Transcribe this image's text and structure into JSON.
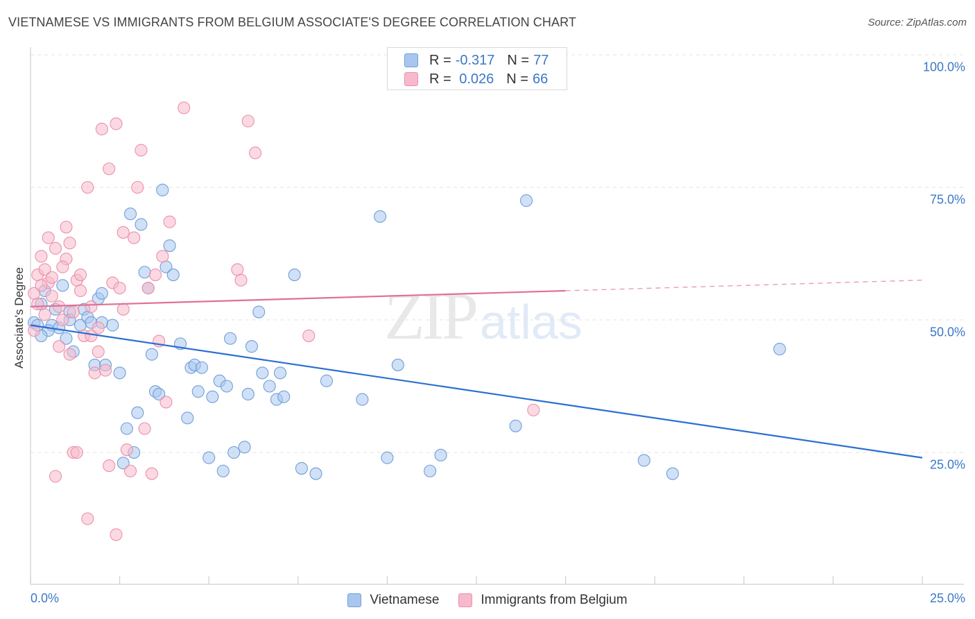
{
  "title": "VIETNAMESE VS IMMIGRANTS FROM BELGIUM ASSOCIATE'S DEGREE CORRELATION CHART",
  "source": "Source: ZipAtlas.com",
  "watermark": {
    "zip": "ZIP",
    "atlas": "atlas"
  },
  "legend_top": [
    {
      "r_label": "R =",
      "r_value": "-0.317",
      "n_label": "N =",
      "n_value": "77"
    },
    {
      "r_label": "R =",
      "r_value": " 0.026",
      "n_label": "N =",
      "n_value": "66"
    }
  ],
  "colors": {
    "vietnamese_fill": "#a9c6ee",
    "vietnamese_stroke": "#6f9fd8",
    "vietnamese_line": "#2a6fd0",
    "belgium_fill": "#f7b9cb",
    "belgium_stroke": "#ec8fab",
    "belgium_line": "#e07096",
    "tick_text": "#3b78c6",
    "grid": "#e3e3e3"
  },
  "chart_data": {
    "type": "scatter",
    "title": "VIETNAMESE VS IMMIGRANTS FROM BELGIUM ASSOCIATE'S DEGREE CORRELATION CHART",
    "xlabel": "",
    "ylabel": "Associate's Degree",
    "xlim": [
      0,
      25
    ],
    "ylim": [
      0,
      105
    ],
    "x_tick_labels": [
      "0.0%",
      "25.0%"
    ],
    "y_tick_labels": [
      "25.0%",
      "50.0%",
      "75.0%",
      "100.0%"
    ],
    "y_ticks": [
      25,
      50,
      75,
      100
    ],
    "grid": true,
    "legend": "top-center and bottom",
    "series": [
      {
        "name": "Vietnamese",
        "r": -0.317,
        "n": 77,
        "trend": {
          "x": [
            0,
            25
          ],
          "y": [
            49,
            24
          ],
          "dashed_from": null
        },
        "points": [
          [
            0.1,
            49.5
          ],
          [
            0.3,
            53
          ],
          [
            0.4,
            55.5
          ],
          [
            0.6,
            49
          ],
          [
            0.7,
            52
          ],
          [
            0.8,
            48.5
          ],
          [
            0.9,
            56.5
          ],
          [
            1.0,
            46.5
          ],
          [
            1.1,
            51.5
          ],
          [
            1.2,
            44
          ],
          [
            1.4,
            49
          ],
          [
            1.5,
            52
          ],
          [
            1.6,
            50.5
          ],
          [
            1.7,
            49.5
          ],
          [
            1.8,
            41.5
          ],
          [
            1.9,
            54
          ],
          [
            2.0,
            49.5
          ],
          [
            2.1,
            41.5
          ],
          [
            2.3,
            49
          ],
          [
            2.5,
            40
          ],
          [
            2.6,
            23
          ],
          [
            2.7,
            29.5
          ],
          [
            2.8,
            70
          ],
          [
            2.9,
            25
          ],
          [
            3.0,
            32.5
          ],
          [
            3.1,
            68
          ],
          [
            3.2,
            59
          ],
          [
            3.3,
            56
          ],
          [
            3.4,
            43.5
          ],
          [
            3.5,
            36.5
          ],
          [
            3.6,
            36
          ],
          [
            3.7,
            74.5
          ],
          [
            3.8,
            60
          ],
          [
            3.9,
            64
          ],
          [
            4.0,
            58.5
          ],
          [
            4.2,
            45.5
          ],
          [
            4.4,
            31.5
          ],
          [
            4.5,
            41
          ],
          [
            4.6,
            41.5
          ],
          [
            4.7,
            36.5
          ],
          [
            4.8,
            41
          ],
          [
            5.0,
            24
          ],
          [
            5.1,
            35.5
          ],
          [
            5.3,
            38.5
          ],
          [
            5.4,
            21.5
          ],
          [
            5.5,
            37.5
          ],
          [
            5.6,
            46.5
          ],
          [
            5.7,
            25
          ],
          [
            6.0,
            26
          ],
          [
            6.1,
            36
          ],
          [
            6.2,
            45
          ],
          [
            6.4,
            51.5
          ],
          [
            6.5,
            40
          ],
          [
            6.7,
            37.5
          ],
          [
            6.9,
            35
          ],
          [
            7.0,
            40
          ],
          [
            7.1,
            35.5
          ],
          [
            7.4,
            58.5
          ],
          [
            7.6,
            22
          ],
          [
            8.0,
            21
          ],
          [
            8.3,
            38.5
          ],
          [
            9.3,
            35
          ],
          [
            9.8,
            69.5
          ],
          [
            10.0,
            24
          ],
          [
            10.3,
            41.5
          ],
          [
            11.2,
            21.5
          ],
          [
            11.5,
            24.5
          ],
          [
            13.9,
            72.5
          ],
          [
            13.6,
            30
          ],
          [
            17.2,
            23.5
          ],
          [
            18.0,
            21
          ],
          [
            21.0,
            44.5
          ],
          [
            0.2,
            49
          ],
          [
            2.0,
            55
          ],
          [
            1.1,
            50
          ],
          [
            0.5,
            48
          ],
          [
            0.3,
            47
          ]
        ]
      },
      {
        "name": "Immigrants from Belgium",
        "r": 0.026,
        "n": 66,
        "trend": {
          "x": [
            0,
            25
          ],
          "y": [
            52.5,
            57.5
          ],
          "dashed_from": 15
        },
        "points": [
          [
            0.1,
            55
          ],
          [
            0.2,
            58.5
          ],
          [
            0.3,
            62
          ],
          [
            0.4,
            59.5
          ],
          [
            0.5,
            57
          ],
          [
            0.5,
            65.5
          ],
          [
            0.6,
            54.5
          ],
          [
            0.7,
            63.5
          ],
          [
            0.8,
            52.5
          ],
          [
            0.9,
            50
          ],
          [
            1.0,
            67.5
          ],
          [
            1.0,
            61.5
          ],
          [
            1.1,
            64.5
          ],
          [
            1.2,
            51.5
          ],
          [
            1.3,
            57.5
          ],
          [
            1.4,
            58.5
          ],
          [
            1.5,
            47
          ],
          [
            1.6,
            75
          ],
          [
            1.7,
            52.5
          ],
          [
            1.8,
            40
          ],
          [
            1.9,
            44
          ],
          [
            2.0,
            86
          ],
          [
            2.1,
            40.5
          ],
          [
            2.2,
            78.5
          ],
          [
            2.3,
            57
          ],
          [
            2.4,
            87
          ],
          [
            2.5,
            56
          ],
          [
            2.6,
            66.5
          ],
          [
            2.7,
            25.5
          ],
          [
            2.8,
            21.5
          ],
          [
            2.9,
            65.5
          ],
          [
            3.0,
            75
          ],
          [
            3.1,
            82
          ],
          [
            3.2,
            29.5
          ],
          [
            3.3,
            56
          ],
          [
            3.4,
            21
          ],
          [
            3.5,
            58.5
          ],
          [
            3.6,
            46
          ],
          [
            3.7,
            62
          ],
          [
            3.8,
            34.5
          ],
          [
            3.9,
            68.5
          ],
          [
            4.3,
            90
          ],
          [
            5.8,
            59.5
          ],
          [
            5.9,
            57.5
          ],
          [
            6.1,
            87.5
          ],
          [
            6.3,
            81.5
          ],
          [
            7.8,
            47
          ],
          [
            14.1,
            33
          ],
          [
            1.6,
            12.5
          ],
          [
            2.4,
            9.5
          ],
          [
            1.2,
            25
          ],
          [
            1.3,
            25
          ],
          [
            0.7,
            20.5
          ],
          [
            1.1,
            43.5
          ],
          [
            0.4,
            51
          ],
          [
            1.7,
            47
          ],
          [
            2.2,
            22.5
          ],
          [
            0.8,
            45
          ],
          [
            0.2,
            53
          ],
          [
            0.6,
            58
          ],
          [
            0.9,
            60
          ],
          [
            1.4,
            55.5
          ],
          [
            2.6,
            52
          ],
          [
            1.9,
            48.5
          ],
          [
            0.3,
            56.5
          ],
          [
            0.1,
            48
          ]
        ]
      }
    ]
  }
}
